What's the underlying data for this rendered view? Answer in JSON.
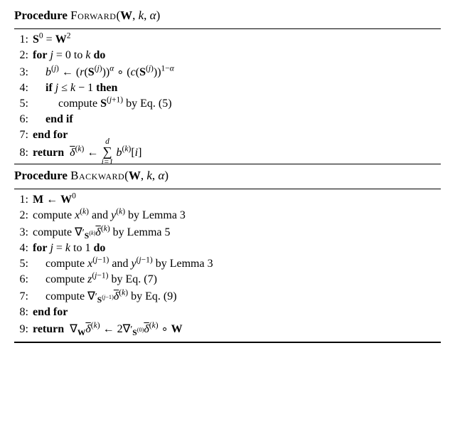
{
  "forward": {
    "title_kw": "Procedure",
    "title_name": "Forward",
    "title_args": "(W, k, α)",
    "lines": [
      {
        "n": "1:",
        "indent": 0,
        "html": "<span class='mb'>S</span><sup>0</sup> = <span class='mb'>W</span><sup>2</sup>"
      },
      {
        "n": "2:",
        "indent": 0,
        "html": "<span class='kw'>for</span> <span class='mi'>j</span> = 0 to <span class='mi'>k</span> <span class='kw'>do</span>"
      },
      {
        "n": "3:",
        "indent": 1,
        "html": "<span class='mi'>b</span><sup>(<span class='mi'>j</span>)</sup> ← (<span class='mi'>r</span>(<span class='mb'>S</span><sup>(<span class='mi'>j</span>)</sup>))<sup><span class='mi'>α</span></sup> ∘ (<span class='mi'>c</span>(<span class='mb'>S</span><sup>(<span class='mi'>j</span>)</sup>))<sup>1−<span class='mi'>α</span></sup>"
      },
      {
        "n": "4:",
        "indent": 1,
        "html": "<span class='kw'>if</span> <span class='mi'>j</span> ≤ <span class='mi'>k</span> − 1 <span class='kw'>then</span>"
      },
      {
        "n": "5:",
        "indent": 2,
        "html": "compute <span class='mb'>S</span><sup>(<span class='mi'>j</span>+1)</sup> by Eq. (5)"
      },
      {
        "n": "6:",
        "indent": 1,
        "html": "<span class='kw'>end if</span>"
      },
      {
        "n": "7:",
        "indent": 0,
        "html": "<span class='kw'>end for</span>"
      },
      {
        "n": "8:",
        "indent": 0,
        "html": "<span class='kw'>return</span>&nbsp; <span class='overbar mi'>δ</span><sup>(<span class='mi'>k</span>)</sup> ← <span class='sum'>∑<span class='lim-top'>d</span><span class='lim-bot'>i=1</span></span> <span class='mi'>b</span><sup>(<span class='mi'>k</span>)</sup>[<span class='mi'>i</span>]"
      }
    ]
  },
  "backward": {
    "title_kw": "Procedure",
    "title_name": "Backward",
    "title_args": "(W, k, α)",
    "lines": [
      {
        "n": "1:",
        "indent": 0,
        "html": "<span class='mb'>M</span> ← <span class='mb'>W</span><sup>0</sup>"
      },
      {
        "n": "2:",
        "indent": 0,
        "html": "compute <span class='mi'>x</span><sup>(<span class='mi'>k</span>)</sup> and <span class='mi'>y</span><sup>(<span class='mi'>k</span>)</sup> by Lemma 3"
      },
      {
        "n": "3:",
        "indent": 0,
        "html": "compute <span class='nabla'>∇</span><span class='prime'>′</span><sub><span class='mb'>S</span><sup>(<span class='mi'>k</span>)</sup></sub><span class='overbar mi'>δ</span><sup>(<span class='mi'>k</span>)</sup> by Lemma 5"
      },
      {
        "n": "4:",
        "indent": 0,
        "html": "<span class='kw'>for</span> <span class='mi'>j</span> = <span class='mi'>k</span> to 1 <span class='kw'>do</span>"
      },
      {
        "n": "5:",
        "indent": 1,
        "html": "compute <span class='mi'>x</span><sup>(<span class='mi'>j</span>−1)</sup> and <span class='mi'>y</span><sup>(<span class='mi'>j</span>−1)</sup> by Lemma 3"
      },
      {
        "n": "6:",
        "indent": 1,
        "html": "compute <span class='mi'>z</span><sup>(<span class='mi'>j</span>−1)</sup> by Eq. (7)"
      },
      {
        "n": "7:",
        "indent": 1,
        "html": "compute <span class='nabla'>∇</span><span class='prime'>′</span><sub><span class='mb'>S</span><sup>(<span class='mi'>j</span>−1)</sup></sub><span class='overbar mi'>δ</span><sup>(<span class='mi'>k</span>)</sup> by Eq. (9)"
      },
      {
        "n": "8:",
        "indent": 0,
        "html": "<span class='kw'>end for</span>"
      },
      {
        "n": "9:",
        "indent": 0,
        "html": "<span class='kw'>return</span>&nbsp; <span class='nabla'>∇</span><sub><span class='mb'>W</span></sub><span class='overbar mi'>δ</span><sup>(<span class='mi'>k</span>)</sup> ← 2<span class='nabla'>∇</span><span class='prime'>′</span><sub><span class='mb'>S</span><sup>(0)</sup></sub><span class='overbar mi'>δ</span><sup>(<span class='mi'>k</span>)</sup> ∘ <span class='mb'>W</span>"
      }
    ]
  }
}
